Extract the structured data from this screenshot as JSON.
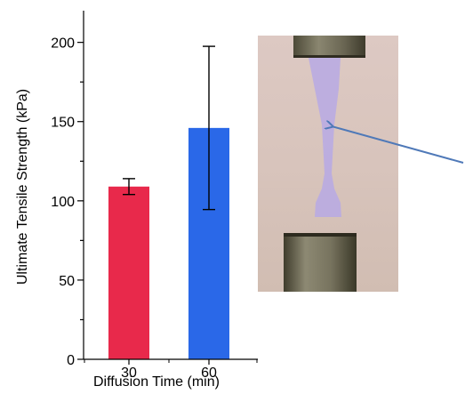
{
  "chart_data": {
    "type": "bar",
    "categories": [
      "30",
      "60"
    ],
    "values": [
      109,
      146
    ],
    "errors": [
      5,
      51.5
    ],
    "bar_colors": [
      "#e8294b",
      "#2a68e8"
    ],
    "xlabel": "Diffusion Time (min)",
    "ylabel": "Ultimate Tensile Strength (kPa)",
    "ylim": [
      0,
      220
    ],
    "yticks": [
      "0",
      "50",
      "100",
      "150",
      "200"
    ],
    "grid": false,
    "legend": "none"
  },
  "photo": {
    "subject": "tensile-test-specimen-photo",
    "specimen_color": "#b7a9e0",
    "clamp_color": "#6f6a52",
    "background_color": "#d9c6bf",
    "arrow_color": "#4f79b8"
  }
}
